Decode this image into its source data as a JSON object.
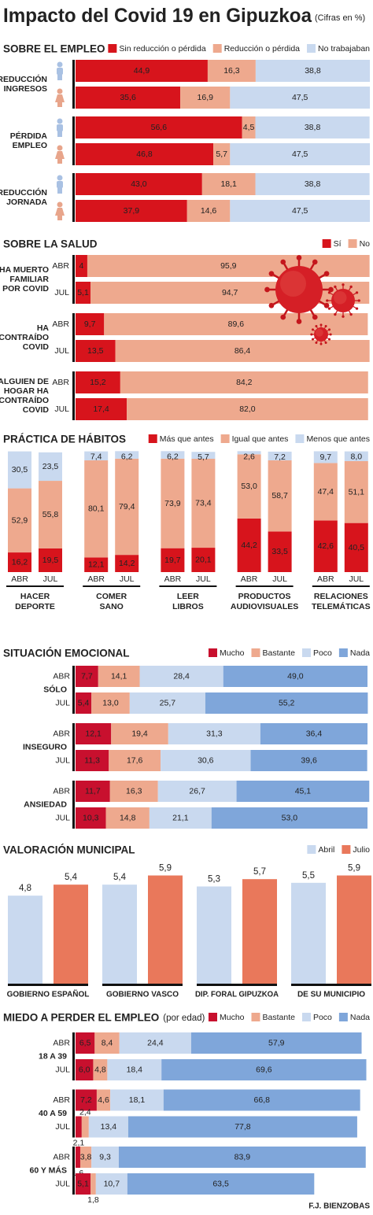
{
  "title": "Impacto del Covid 19 en Gipuzkoa",
  "subtitle": "(Cifras en %)",
  "credit": "F.J. BIENZOBAS",
  "chart_data": [
    {
      "type": "stacked_hbar",
      "title": "SOBRE EL EMPLEO",
      "groups": [
        [
          "REDUCCIÓN",
          "INGRESOS"
        ],
        [
          "PÉRDIDA",
          "EMPLEO"
        ],
        [
          "REDUCCIÓN",
          "JORNADA"
        ]
      ],
      "series": [
        {
          "name": "Sin reducción o pérdida",
          "color": "#d7141c",
          "values": [
            44.9,
            35.6,
            56.6,
            46.8,
            43.0,
            37.9
          ],
          "value_labels": [
            "44,9",
            "35,6",
            "56,6",
            "46,8",
            "43,0",
            "37,9"
          ]
        },
        {
          "name": "Reducción o pérdida",
          "color": "#eea98e",
          "values": [
            16.3,
            16.9,
            4.5,
            5.7,
            18.1,
            14.6
          ],
          "value_labels": [
            "16,3",
            "16,9",
            "4,5",
            "5,7",
            "18,1",
            "14,6"
          ]
        },
        {
          "name": "No trabajaban",
          "color": "#c9d9ef",
          "values": [
            38.8,
            47.5,
            38.8,
            47.5,
            38.8,
            47.5
          ],
          "value_labels": [
            "38,8",
            "47,5",
            "38,8",
            "47,5",
            "38,8",
            "47,5"
          ]
        }
      ]
    },
    {
      "type": "stacked_hbar",
      "title": "SOBRE LA SALUD",
      "groups": [
        [
          "HA MUERTO",
          "FAMILIAR",
          "POR COVID"
        ],
        [
          "HA",
          "CONTRAÍDO",
          "COVID"
        ],
        [
          "ALGUIEN DE",
          "HOGAR HA",
          "CONTRAÍDO",
          "COVID"
        ]
      ],
      "categories": [
        "ABR",
        "JUL",
        "ABR",
        "JUL",
        "ABR",
        "JUL"
      ],
      "series": [
        {
          "name": "Sí",
          "color": "#d7141c",
          "values": [
            4,
            5.1,
            9.7,
            13.5,
            15.2,
            17.4
          ],
          "value_labels": [
            "4",
            "5,1",
            "9,7",
            "13,5",
            "15,2",
            "17,4"
          ]
        },
        {
          "name": "No",
          "color": "#eea98e",
          "values": [
            95.9,
            94.7,
            89.6,
            86.4,
            84.2,
            82.0
          ],
          "value_labels": [
            "95,9",
            "94,7",
            "89,6",
            "86,4",
            "84,2",
            "82,0"
          ]
        }
      ]
    },
    {
      "type": "stacked_vbar",
      "title": "PRÁCTICA DE HÁBITOS",
      "groups": [
        [
          "HACER",
          "DEPORTE"
        ],
        [
          "COMER",
          "SANO"
        ],
        [
          "LEER",
          "LIBROS"
        ],
        [
          "PRODUCTOS",
          "AUDIOVISUALES"
        ],
        [
          "RELACIONES",
          "TELEMÁTICAS"
        ]
      ],
      "categories": [
        "ABR",
        "JUL",
        "ABR",
        "JUL",
        "ABR",
        "JUL",
        "ABR",
        "JUL",
        "ABR",
        "JUL"
      ],
      "series": [
        {
          "name": "Más que antes",
          "color": "#d7141c",
          "values": [
            16.2,
            19.5,
            12.1,
            14.2,
            19.7,
            20.1,
            44.2,
            33.5,
            42.6,
            40.5
          ],
          "value_labels": [
            "16,2",
            "19,5",
            "12,1",
            "14,2",
            "19,7",
            "20,1",
            "44,2",
            "33,5",
            "42,6",
            "40,5"
          ]
        },
        {
          "name": "Igual que antes",
          "color": "#eea98e",
          "values": [
            52.9,
            55.8,
            80.1,
            79.4,
            73.9,
            73.4,
            53.0,
            58.7,
            47.4,
            51.1
          ],
          "value_labels": [
            "52,9",
            "55,8",
            "80,1",
            "79,4",
            "73,9",
            "73,4",
            "53,0",
            "58,7",
            "47,4",
            "51,1"
          ]
        },
        {
          "name": "Menos que antes",
          "color": "#c9d9ef",
          "values": [
            30.5,
            23.5,
            7.4,
            6.2,
            6.2,
            5.7,
            2.6,
            7.2,
            9.7,
            8.0
          ],
          "value_labels": [
            "30,5",
            "23,5",
            "7,4",
            "6,2",
            "6,2",
            "5,7",
            "2,6",
            "7,2",
            "9,7",
            "8,0"
          ]
        }
      ]
    },
    {
      "type": "stacked_hbar",
      "title": "SITUACIÓN EMOCIONAL",
      "groups": [
        [
          "SÓLO"
        ],
        [
          "INSEGURO"
        ],
        [
          "ANSIEDAD"
        ]
      ],
      "categories": [
        "ABR",
        "JUL",
        "ABR",
        "JUL",
        "ABR",
        "JUL"
      ],
      "series": [
        {
          "name": "Mucho",
          "color": "#c8102e",
          "values": [
            7.7,
            5.4,
            12.1,
            11.3,
            11.7,
            10.3
          ],
          "value_labels": [
            "7,7",
            "5,4",
            "12,1",
            "11,3",
            "11,7",
            "10,3"
          ]
        },
        {
          "name": "Bastante",
          "color": "#eea98e",
          "values": [
            14.1,
            13.0,
            19.4,
            17.6,
            16.3,
            14.8
          ],
          "value_labels": [
            "14,1",
            "13,0",
            "19,4",
            "17,6",
            "16,3",
            "14,8"
          ]
        },
        {
          "name": "Poco",
          "color": "#c9d9ef",
          "values": [
            28.4,
            25.7,
            31.3,
            30.6,
            26.7,
            21.1
          ],
          "value_labels": [
            "28,4",
            "25,7",
            "31,3",
            "30,6",
            "26,7",
            "21,1"
          ]
        },
        {
          "name": "Nada",
          "color": "#7fa6da",
          "values": [
            49.0,
            55.2,
            36.4,
            39.6,
            45.1,
            53.0
          ],
          "value_labels": [
            "49,0",
            "55,2",
            "36,4",
            "39,6",
            "45,1",
            "53,0"
          ]
        }
      ]
    },
    {
      "type": "grouped_bar",
      "title": "VALORACIÓN MUNICIPAL",
      "categories": [
        "GOBIERNO ESPAÑOL",
        "GOBIERNO VASCO",
        "DIP. FORAL GIPUZKOA",
        "DE SU MUNICIPIO"
      ],
      "series": [
        {
          "name": "Abril",
          "color": "#c9d9ef",
          "values": [
            4.8,
            5.4,
            5.3,
            5.5
          ],
          "value_labels": [
            "4,8",
            "5,4",
            "5,3",
            "5,5"
          ]
        },
        {
          "name": "Julio",
          "color": "#e9785b",
          "values": [
            5.4,
            5.9,
            5.7,
            5.9
          ],
          "value_labels": [
            "5,4",
            "5,9",
            "5,7",
            "5,9"
          ]
        }
      ]
    },
    {
      "type": "stacked_hbar",
      "title": "MIEDO A PERDER EL EMPLEO",
      "subtitle": "(por edad)",
      "groups": [
        [
          "18 A 39"
        ],
        [
          "40 A 59"
        ],
        [
          "60 Y MÁS"
        ]
      ],
      "categories": [
        "ABR",
        "JUL",
        "ABR",
        "JUL",
        "ABR",
        "JUL"
      ],
      "series": [
        {
          "name": "Mucho",
          "color": "#c8102e",
          "values": [
            6.5,
            6.0,
            7.2,
            2.1,
            1.6,
            5.1
          ],
          "value_labels": [
            "6,5",
            "6,0",
            "7,2",
            "2,1",
            "1,6",
            "5,1"
          ]
        },
        {
          "name": "Bastante",
          "color": "#eea98e",
          "values": [
            8.4,
            4.8,
            4.6,
            2.4,
            3.8,
            1.8
          ],
          "value_labels": [
            "8,4",
            "4,8",
            "4,6",
            "2,4",
            "3,8",
            "1,8"
          ]
        },
        {
          "name": "Poco",
          "color": "#c9d9ef",
          "values": [
            24.4,
            18.4,
            18.1,
            13.4,
            9.3,
            10.7
          ],
          "value_labels": [
            "24,4",
            "18,4",
            "18,1",
            "13,4",
            "9,3",
            "10,7"
          ]
        },
        {
          "name": "Nada",
          "color": "#7fa6da",
          "values": [
            57.9,
            69.6,
            66.8,
            77.8,
            83.9,
            63.5
          ],
          "value_labels": [
            "57,9",
            "69,6",
            "66,8",
            "77,8",
            "83,9",
            "63,5"
          ]
        }
      ]
    }
  ]
}
